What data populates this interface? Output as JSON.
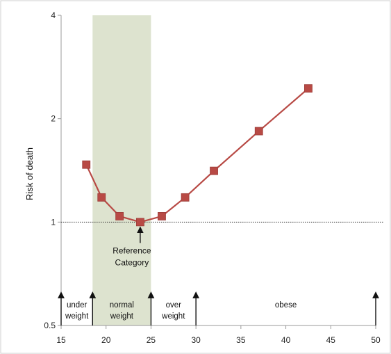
{
  "chart_data": {
    "type": "line",
    "title": "",
    "xlabel": "",
    "ylabel": "Risk of death",
    "xlim": [
      15,
      50
    ],
    "ylim": [
      0.5,
      4
    ],
    "yscale": "log",
    "x_ticks": [
      15,
      20,
      25,
      30,
      35,
      40,
      45,
      50
    ],
    "y_ticks": [
      0.5,
      1,
      2,
      4
    ],
    "grid": false,
    "reference_line": {
      "y": 1,
      "style": "dotted"
    },
    "shaded_band": {
      "x_from": 18.5,
      "x_to": 25,
      "color": "#dde3cf"
    },
    "series": [
      {
        "color": "#b84a45",
        "marker": "square",
        "points": [
          {
            "x": 17.8,
            "y": 1.47
          },
          {
            "x": 19.5,
            "y": 1.18
          },
          {
            "x": 21.5,
            "y": 1.04
          },
          {
            "x": 23.8,
            "y": 1.0
          },
          {
            "x": 26.2,
            "y": 1.04
          },
          {
            "x": 28.8,
            "y": 1.18
          },
          {
            "x": 32.0,
            "y": 1.41
          },
          {
            "x": 37.0,
            "y": 1.84
          },
          {
            "x": 42.5,
            "y": 2.45
          }
        ]
      }
    ],
    "categories": [
      {
        "line1": "under",
        "line2": "weight",
        "x_from": 15,
        "x_to": 18.5
      },
      {
        "line1": "normal",
        "line2": "weight",
        "x_from": 18.5,
        "x_to": 25
      },
      {
        "line1": "over",
        "line2": "weight",
        "x_from": 25,
        "x_to": 30
      },
      {
        "line1": "obese",
        "line2": "",
        "x_from": 30,
        "x_to": 50
      }
    ],
    "category_boundaries": [
      15,
      18.5,
      25,
      30,
      50
    ],
    "annotation": {
      "line1": "Reference",
      "line2": "Category",
      "x": 23.8,
      "y": 1.0
    }
  }
}
